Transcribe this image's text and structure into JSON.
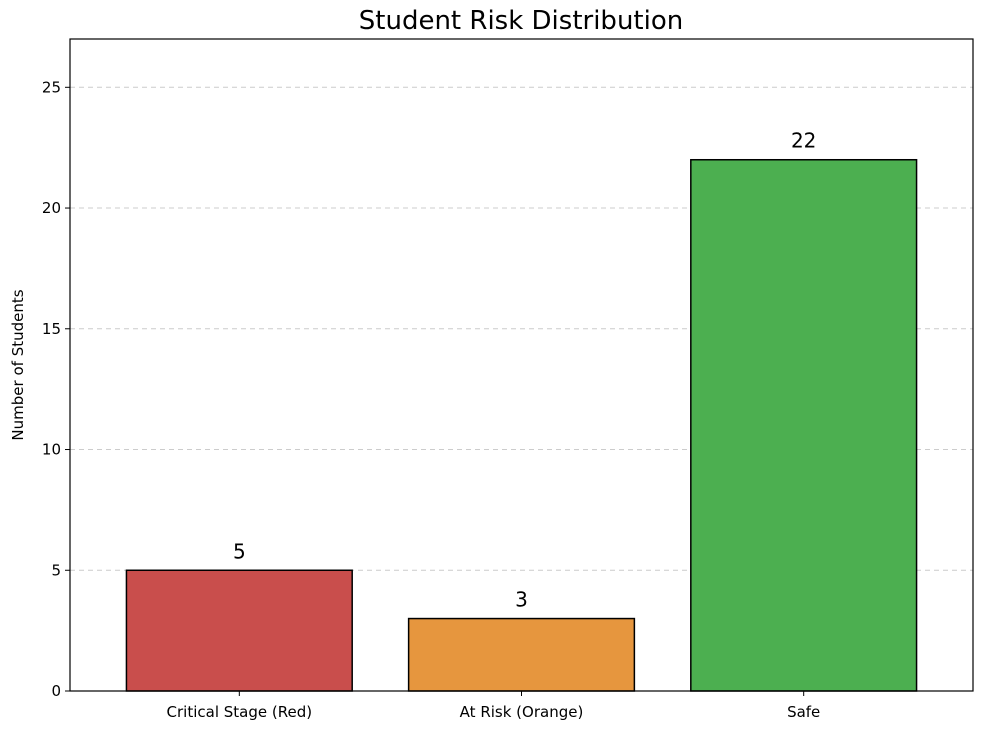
{
  "chart_data": {
    "type": "bar",
    "title": "Student Risk Distribution",
    "xlabel": "",
    "ylabel": "Number of Students",
    "categories": [
      "Critical Stage (Red)",
      "At Risk (Orange)",
      "Safe"
    ],
    "values": [
      5,
      3,
      22
    ],
    "data_labels": [
      "5",
      "3",
      "22"
    ],
    "colors": [
      "#c94e4c",
      "#e6963e",
      "#4caf50"
    ],
    "edge_color": "#000000",
    "ylim": [
      0,
      27
    ],
    "yticks": [
      0,
      5,
      10,
      15,
      20,
      25
    ],
    "grid": "y-dashed",
    "legend": "none"
  }
}
